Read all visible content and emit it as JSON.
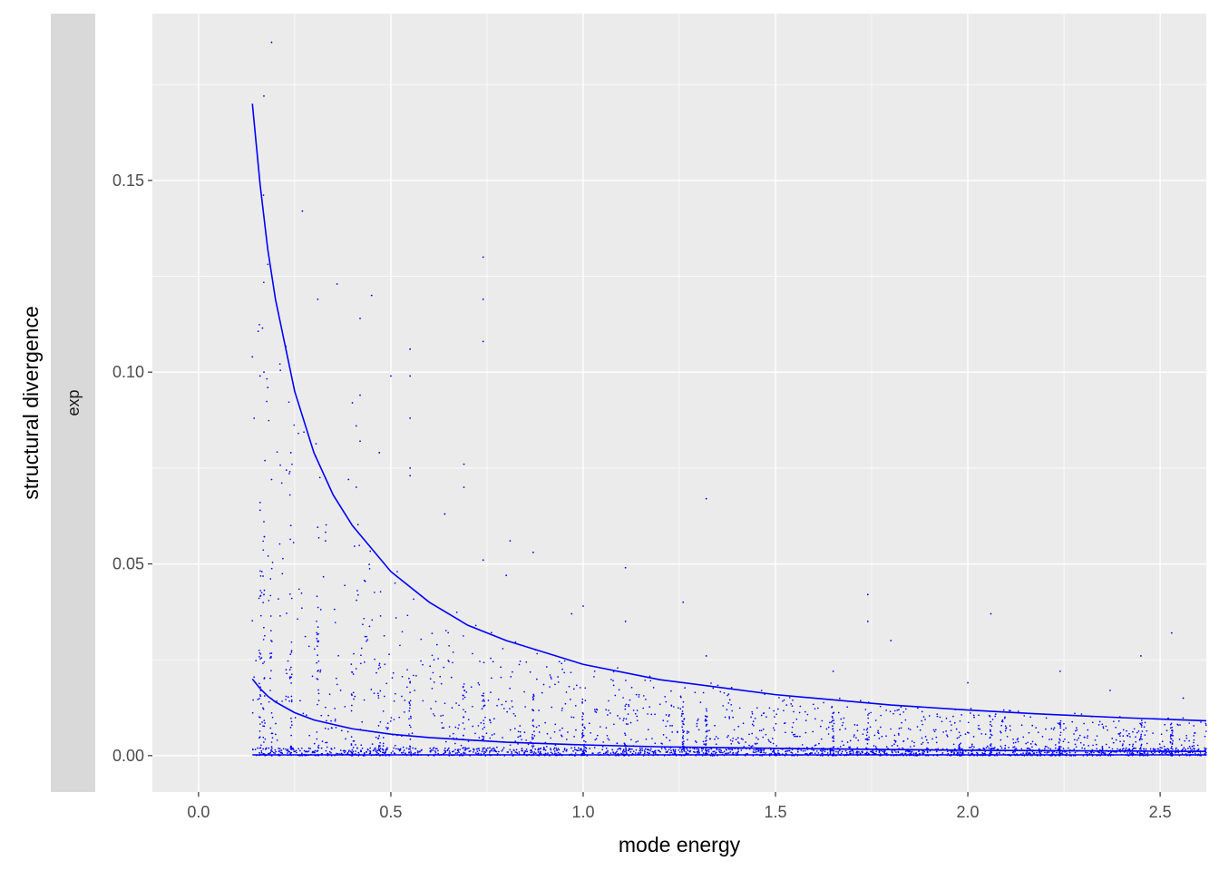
{
  "chart_data": {
    "type": "scatter",
    "title": "",
    "xlabel": "mode energy",
    "ylabel": "structural divergence",
    "facet_label": "exp",
    "xlim": [
      -0.12,
      2.62
    ],
    "ylim": [
      -0.0095,
      0.1935
    ],
    "x_ticks": [
      0.0,
      0.5,
      1.0,
      1.5,
      2.0,
      2.5
    ],
    "x_tick_labels": [
      "0.0",
      "0.5",
      "1.0",
      "1.5",
      "2.0",
      "2.5"
    ],
    "y_ticks": [
      0.0,
      0.05,
      0.1,
      0.15
    ],
    "y_tick_labels": [
      "0.00",
      "0.05",
      "0.10",
      "0.15"
    ],
    "grid": true,
    "legend": "none",
    "colors": {
      "panel_background": "#ebebeb",
      "grid_major": "#ffffff",
      "strip_background": "#d9d9d9",
      "series": "#0000ff"
    },
    "series": [
      {
        "kind": "points",
        "note_points": [
          [
            0.19,
            0.186
          ],
          [
            0.17,
            0.172
          ],
          [
            0.27,
            0.142
          ],
          [
            0.74,
            0.13
          ],
          [
            0.36,
            0.123
          ],
          [
            0.45,
            0.12
          ],
          [
            0.31,
            0.119
          ],
          [
            0.74,
            0.119
          ],
          [
            0.42,
            0.114
          ],
          [
            0.74,
            0.108
          ],
          [
            0.55,
            0.106
          ],
          [
            0.14,
            0.104
          ],
          [
            0.16,
            0.099
          ],
          [
            0.17,
            0.1
          ],
          [
            0.5,
            0.099
          ],
          [
            0.55,
            0.099
          ],
          [
            0.18,
            0.096
          ],
          [
            0.42,
            0.094
          ],
          [
            0.4,
            0.092
          ],
          [
            0.55,
            0.088
          ],
          [
            0.41,
            0.086
          ],
          [
            0.42,
            0.082
          ],
          [
            0.24,
            0.079
          ],
          [
            0.47,
            0.079
          ],
          [
            0.69,
            0.076
          ],
          [
            0.55,
            0.075
          ],
          [
            0.55,
            0.073
          ],
          [
            0.39,
            0.072
          ],
          [
            0.19,
            0.072
          ],
          [
            0.41,
            0.07
          ],
          [
            0.69,
            0.07
          ],
          [
            0.16,
            0.066
          ],
          [
            0.16,
            0.064
          ],
          [
            0.17,
            0.061
          ],
          [
            0.24,
            0.06
          ],
          [
            0.64,
            0.063
          ],
          [
            1.32,
            0.067
          ],
          [
            0.33,
            0.056
          ],
          [
            0.81,
            0.056
          ],
          [
            0.74,
            0.051
          ],
          [
            0.87,
            0.053
          ],
          [
            1.11,
            0.049
          ],
          [
            0.8,
            0.047
          ],
          [
            0.17,
            0.042
          ],
          [
            1.26,
            0.04
          ],
          [
            1.0,
            0.039
          ],
          [
            1.74,
            0.042
          ],
          [
            1.74,
            0.035
          ],
          [
            2.06,
            0.037
          ],
          [
            2.53,
            0.032
          ],
          [
            1.11,
            0.035
          ],
          [
            0.97,
            0.037
          ],
          [
            1.8,
            0.03
          ],
          [
            2.45,
            0.026
          ],
          [
            1.32,
            0.026
          ],
          [
            2.24,
            0.022
          ],
          [
            1.65,
            0.022
          ],
          [
            2.0,
            0.019
          ],
          [
            2.37,
            0.017
          ],
          [
            2.56,
            0.015
          ]
        ]
      },
      {
        "kind": "line",
        "name": "",
        "x": [
          0.14,
          0.16,
          0.18,
          0.2,
          0.25,
          0.3,
          0.35,
          0.4,
          0.5,
          0.6,
          0.7,
          0.8,
          1.0,
          1.2,
          1.5,
          1.8,
          2.0,
          2.2,
          2.4,
          2.62
        ],
        "y": [
          0.17,
          0.149,
          0.132,
          0.119,
          0.095,
          0.079,
          0.068,
          0.06,
          0.048,
          0.04,
          0.034,
          0.03,
          0.0238,
          0.0198,
          0.0159,
          0.0132,
          0.0119,
          0.0108,
          0.0099,
          0.0091
        ]
      },
      {
        "kind": "line",
        "name": "",
        "x": [
          0.14,
          0.16,
          0.18,
          0.2,
          0.25,
          0.3,
          0.4,
          0.5,
          0.6,
          0.8,
          1.0,
          1.2,
          1.5,
          2.0,
          2.62
        ],
        "y": [
          0.02,
          0.0175,
          0.0155,
          0.014,
          0.0112,
          0.0093,
          0.007,
          0.0056,
          0.0047,
          0.0035,
          0.0028,
          0.0023,
          0.0019,
          0.0014,
          0.0011
        ]
      },
      {
        "kind": "line",
        "name": "",
        "x": [
          0.14,
          2.62
        ],
        "y": [
          0.0002,
          0.0002
        ]
      }
    ]
  }
}
